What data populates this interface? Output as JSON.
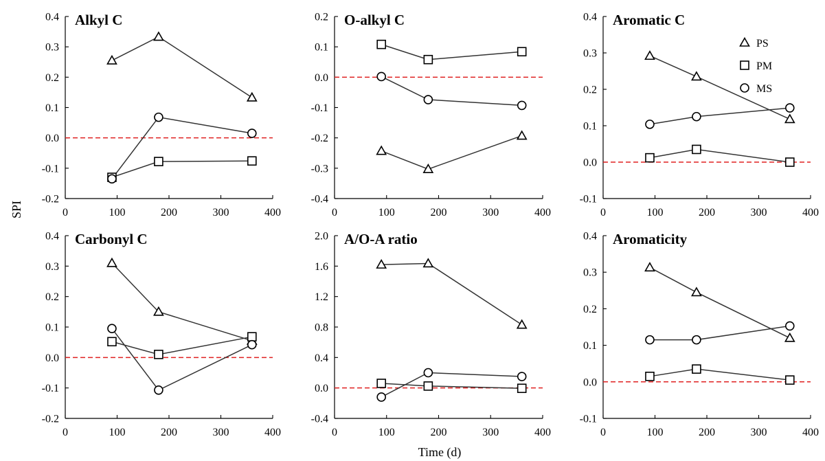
{
  "colors": {
    "zero_line": "#e02020",
    "series_line": "#333333",
    "axis": "#000000"
  },
  "axis_labels": {
    "y": "SPI",
    "x": "Time (d)"
  },
  "legend": [
    {
      "name": "PS",
      "marker": "triangle"
    },
    {
      "name": "PM",
      "marker": "square"
    },
    {
      "name": "MS",
      "marker": "circle"
    }
  ],
  "chart_data": [
    {
      "type": "line",
      "title": "Alkyl C",
      "xlim": [
        0,
        400
      ],
      "ylim": [
        -0.2,
        0.4
      ],
      "xticks": [
        "0",
        "100",
        "200",
        "300",
        "400"
      ],
      "yticks": [
        "-0.2",
        "-0.1",
        "0.0",
        "0.1",
        "0.2",
        "0.3",
        "0.4"
      ],
      "x": [
        90,
        180,
        360
      ],
      "series": [
        {
          "name": "PS",
          "values": [
            0.255,
            0.333,
            0.133
          ]
        },
        {
          "name": "PM",
          "values": [
            -0.13,
            -0.078,
            -0.076
          ]
        },
        {
          "name": "MS",
          "values": [
            -0.135,
            0.068,
            0.015
          ]
        }
      ]
    },
    {
      "type": "line",
      "title": "O-alkyl C",
      "xlim": [
        0,
        400
      ],
      "ylim": [
        -0.4,
        0.2
      ],
      "xticks": [
        "0",
        "100",
        "200",
        "300",
        "400"
      ],
      "yticks": [
        "-0.4",
        "-0.3",
        "-0.2",
        "-0.1",
        "0.0",
        "0.1",
        "0.2"
      ],
      "x": [
        90,
        180,
        360
      ],
      "series": [
        {
          "name": "PS",
          "values": [
            -0.243,
            -0.303,
            -0.193
          ]
        },
        {
          "name": "PM",
          "values": [
            0.108,
            0.058,
            0.084
          ]
        },
        {
          "name": "MS",
          "values": [
            0.002,
            -0.074,
            -0.093
          ]
        }
      ]
    },
    {
      "type": "line",
      "title": "Aromatic C",
      "xlim": [
        0,
        400
      ],
      "ylim": [
        -0.1,
        0.4
      ],
      "xticks": [
        "0",
        "100",
        "200",
        "300",
        "400"
      ],
      "yticks": [
        "-0.1",
        "0.0",
        "0.1",
        "0.2",
        "0.3",
        "0.4"
      ],
      "x": [
        90,
        180,
        360
      ],
      "series": [
        {
          "name": "PS",
          "values": [
            0.292,
            0.235,
            0.118
          ]
        },
        {
          "name": "PM",
          "values": [
            0.012,
            0.035,
            0.0
          ]
        },
        {
          "name": "MS",
          "values": [
            0.104,
            0.125,
            0.149
          ]
        }
      ]
    },
    {
      "type": "line",
      "title": "Carbonyl C",
      "xlim": [
        0,
        400
      ],
      "ylim": [
        -0.2,
        0.4
      ],
      "xticks": [
        "0",
        "100",
        "200",
        "300",
        "400"
      ],
      "yticks": [
        "-0.2",
        "-0.1",
        "0.0",
        "0.1",
        "0.2",
        "0.3",
        "0.4"
      ],
      "x": [
        90,
        180,
        360
      ],
      "series": [
        {
          "name": "PS",
          "values": [
            0.31,
            0.15,
            0.055
          ]
        },
        {
          "name": "PM",
          "values": [
            0.052,
            0.01,
            0.068
          ]
        },
        {
          "name": "MS",
          "values": [
            0.095,
            -0.107,
            0.042
          ]
        }
      ]
    },
    {
      "type": "line",
      "title": "A/O-A ratio",
      "xlim": [
        0,
        400
      ],
      "ylim": [
        -0.4,
        2.0
      ],
      "xticks": [
        "0",
        "100",
        "200",
        "300",
        "400"
      ],
      "yticks": [
        "-0.4",
        "0.0",
        "0.4",
        "0.8",
        "1.2",
        "1.6",
        "2.0"
      ],
      "x": [
        90,
        180,
        360
      ],
      "series": [
        {
          "name": "PS",
          "values": [
            1.62,
            1.635,
            0.83
          ]
        },
        {
          "name": "PM",
          "values": [
            0.06,
            0.025,
            -0.005
          ]
        },
        {
          "name": "MS",
          "values": [
            -0.12,
            0.2,
            0.15
          ]
        }
      ]
    },
    {
      "type": "line",
      "title": "Aromaticity",
      "xlim": [
        0,
        400
      ],
      "ylim": [
        -0.1,
        0.4
      ],
      "xticks": [
        "0",
        "100",
        "200",
        "300",
        "400"
      ],
      "yticks": [
        "-0.1",
        "0.0",
        "0.1",
        "0.2",
        "0.3",
        "0.4"
      ],
      "x": [
        90,
        180,
        360
      ],
      "series": [
        {
          "name": "PS",
          "values": [
            0.313,
            0.245,
            0.12
          ]
        },
        {
          "name": "PM",
          "values": [
            0.015,
            0.035,
            0.005
          ]
        },
        {
          "name": "MS",
          "values": [
            0.115,
            0.115,
            0.153
          ]
        }
      ]
    }
  ]
}
